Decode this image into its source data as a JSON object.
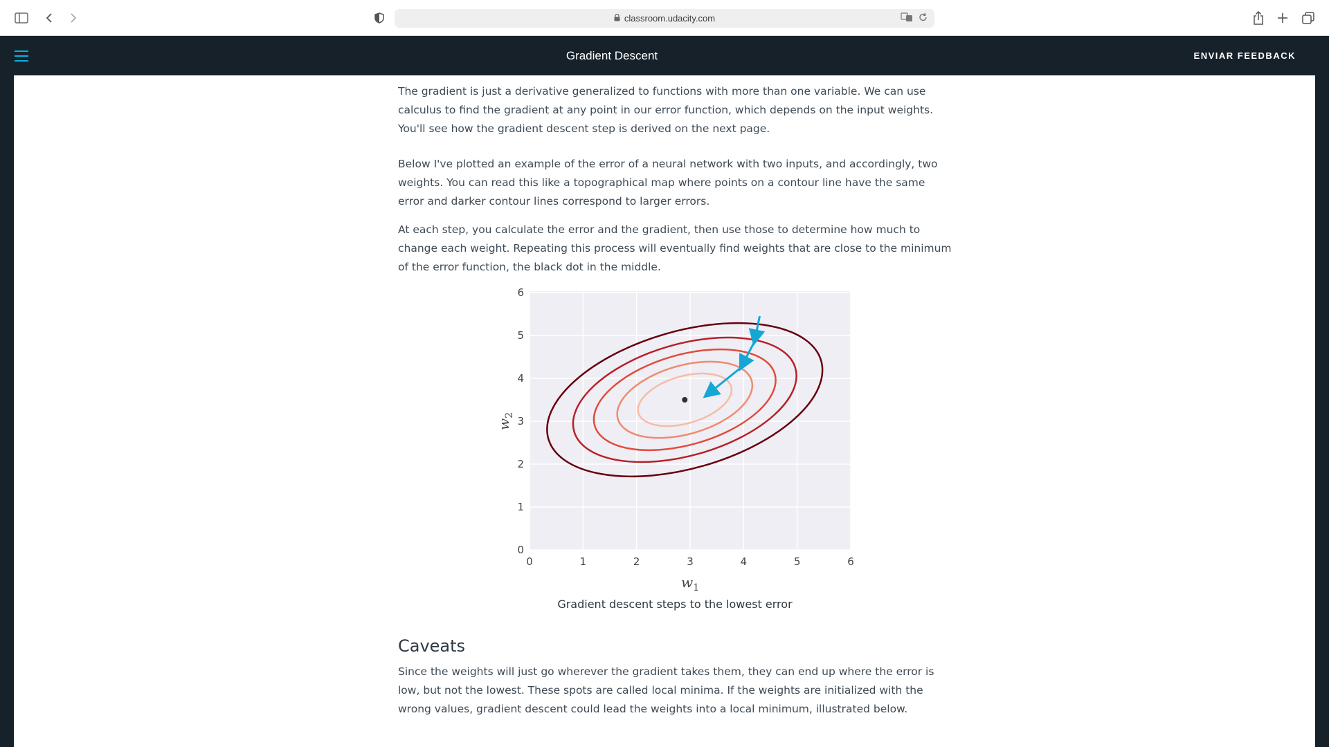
{
  "browser": {
    "url": "classroom.udacity.com",
    "icons": [
      "sidebar-icon",
      "back-icon",
      "forward-icon",
      "shield-icon",
      "lock-icon",
      "translate-icon",
      "reload-icon",
      "share-icon",
      "new-tab-icon",
      "tabs-icon"
    ]
  },
  "header": {
    "title": "Gradient Descent",
    "feedback_label": "ENVIAR FEEDBACK",
    "accent": "#02b3e4"
  },
  "article": {
    "p1": "The gradient is just a derivative generalized to functions with more than one variable. We can use calculus to find the gradient at any point in our error function, which depends on the input weights. You'll see how the gradient descent step is derived on the next page.",
    "p2": "Below I've plotted an example of the error of a neural network with two inputs, and accordingly, two weights. You can read this like a topographical map where points on a contour line have the same error and darker contour lines correspond to larger errors.",
    "p3": "At each step, you calculate the error and the gradient, then use those to determine how much to change each weight. Repeating this process will eventually find weights that are close to the minimum of the error function, the black dot in the middle.",
    "caption": "Gradient descent steps to the lowest error",
    "section_title": "Caveats",
    "p4": "Since the weights will just go wherever the gradient takes them, they can end up where the error is low, but not the lowest. These spots are called local minima. If the weights are initialized with the wrong values, gradient descent could lead the weights into a local minimum, illustrated below."
  },
  "chart_data": {
    "type": "contour",
    "xlabel": "w",
    "xlabel_sub": "1",
    "ylabel": "w",
    "ylabel_sub": "2",
    "xlim": [
      0,
      6
    ],
    "ylim": [
      0,
      6
    ],
    "x_ticks": [
      "0",
      "1",
      "2",
      "3",
      "4",
      "5",
      "6"
    ],
    "y_ticks": [
      "0",
      "1",
      "2",
      "3",
      "4",
      "5",
      "6"
    ],
    "grid": true,
    "minimum": {
      "x": 2.9,
      "y": 3.5
    },
    "contours": [
      {
        "rx": 0.9,
        "ry": 0.55,
        "color": "#f7bba6"
      },
      {
        "rx": 1.3,
        "ry": 0.8,
        "color": "#f08a6e"
      },
      {
        "rx": 1.75,
        "ry": 1.05,
        "color": "#e04b3b"
      },
      {
        "rx": 2.15,
        "ry": 1.3,
        "color": "#b7202a"
      },
      {
        "rx": 2.65,
        "ry": 1.6,
        "color": "#67000d"
      }
    ],
    "contour_angle_deg": 16,
    "steps": [
      {
        "x": 4.3,
        "y": 5.45
      },
      {
        "x": 4.2,
        "y": 4.85
      },
      {
        "x": 3.95,
        "y": 4.25
      },
      {
        "x": 3.3,
        "y": 3.6
      }
    ],
    "step_color": "#15a6d6"
  }
}
